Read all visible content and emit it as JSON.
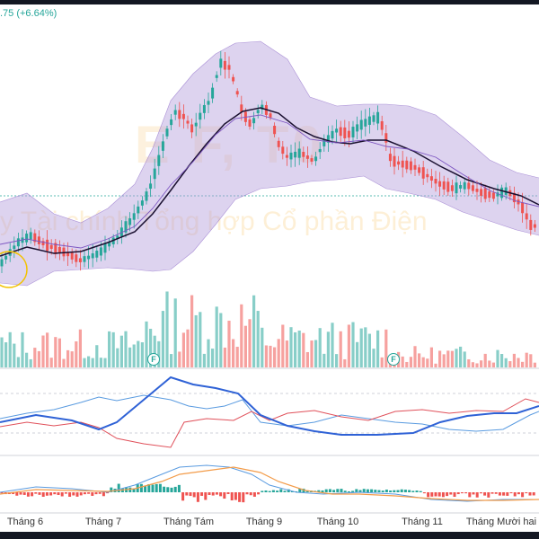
{
  "price_change_label": ".75 (+6.64%)",
  "watermark": {
    "ticker": "E F, T0",
    "company_name": "y Tài chính Tổng hợp Cổ phần Điện"
  },
  "x_axis": {
    "months": [
      "Tháng 6",
      "Tháng 7",
      "Tháng Tám",
      "Tháng 9",
      "Tháng 10",
      "Tháng 11",
      "Tháng Mười hai"
    ]
  },
  "events": [
    {
      "type": "F",
      "label": "F"
    },
    {
      "type": "F",
      "label": "F"
    }
  ],
  "colors": {
    "up": "#26a69a",
    "down": "#ef5350",
    "band_fill": "#b39ddb",
    "ma_line": "#1a1030",
    "bb_line": "#7e57c2",
    "signal_blue": "#2f62d6",
    "osc_red": "#e0505a",
    "osc_lightblue": "#5a9be0",
    "macd_orange": "#f39c4a"
  },
  "indicators": [
    "bollinger-bands",
    "moving-average",
    "volume",
    "oscillator",
    "macd-histogram"
  ]
}
